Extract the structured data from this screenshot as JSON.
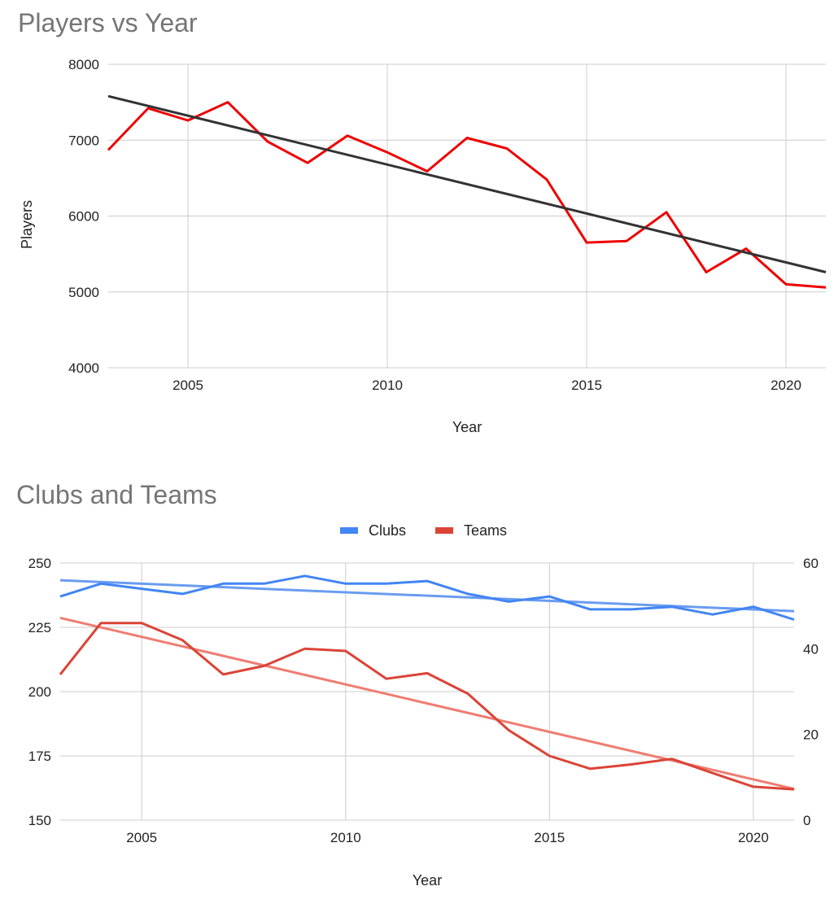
{
  "chart_data": [
    {
      "type": "line",
      "title": "Players vs Year",
      "xlabel": "Year",
      "ylabel": "Players",
      "xlim": [
        2003,
        2021
      ],
      "ylim": [
        4000,
        8000
      ],
      "x_ticks": [
        2005,
        2010,
        2015,
        2020
      ],
      "y_ticks": [
        4000,
        5000,
        6000,
        7000,
        8000
      ],
      "grid": true,
      "legend": "none",
      "x": [
        2003,
        2004,
        2005,
        2006,
        2007,
        2008,
        2009,
        2010,
        2011,
        2012,
        2013,
        2014,
        2015,
        2016,
        2017,
        2018,
        2019,
        2020,
        2021
      ],
      "series": [
        {
          "color": "#ee0000",
          "values": [
            6870,
            7420,
            7260,
            7500,
            6980,
            6700,
            7060,
            6840,
            6590,
            7030,
            6890,
            6480,
            5650,
            5670,
            6050,
            5260,
            5570,
            5100,
            5060
          ]
        }
      ],
      "trendline": {
        "color": "#333333",
        "x": [
          2003,
          2021
        ],
        "y": [
          7580,
          5260
        ]
      }
    },
    {
      "type": "line",
      "title": "Clubs and Teams",
      "xlabel": "Year",
      "xlim": [
        2003,
        2021
      ],
      "ylim_left": [
        150,
        250
      ],
      "ylim_right": [
        0,
        60
      ],
      "x_ticks": [
        2005,
        2010,
        2015,
        2020
      ],
      "y_ticks_left": [
        150,
        175,
        200,
        225,
        250
      ],
      "y_ticks_right": [
        0,
        20,
        40,
        60
      ],
      "grid": true,
      "legend": "top-center",
      "x": [
        2003,
        2004,
        2005,
        2006,
        2007,
        2008,
        2009,
        2010,
        2011,
        2012,
        2013,
        2014,
        2015,
        2016,
        2017,
        2018,
        2019,
        2020,
        2021
      ],
      "series": [
        {
          "name": "Clubs",
          "axis": "left",
          "color": "#4285f4",
          "trend_color": "#6a9cf0",
          "values": [
            237,
            242,
            240,
            238,
            242,
            242,
            245,
            242,
            242,
            243,
            238,
            235,
            237,
            232,
            232,
            233,
            230,
            233,
            228
          ],
          "trendline": {
            "x": [
              2003,
              2021
            ],
            "y": [
              243.3,
              231.3
            ]
          }
        },
        {
          "name": "Teams",
          "axis": "right",
          "color": "#db4437",
          "trend_color": "#ef7d72",
          "values": [
            34,
            46,
            46,
            42,
            34,
            36,
            40,
            39.5,
            33,
            34.3,
            29.5,
            21,
            15,
            12,
            13,
            14.3,
            11,
            7.8,
            7.2
          ],
          "trendline": {
            "x": [
              2003,
              2021
            ],
            "y": [
              47.2,
              7.3
            ]
          }
        }
      ]
    }
  ]
}
